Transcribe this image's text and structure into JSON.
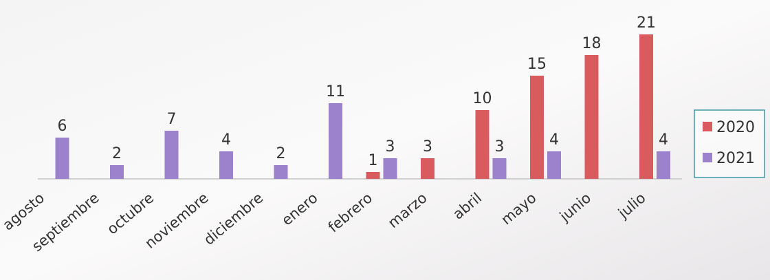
{
  "chart_data": {
    "type": "bar",
    "categories": [
      "agosto",
      "septiembre",
      "octubre",
      "noviembre",
      "diciembre",
      "enero",
      "febrero",
      "marzo",
      "abril",
      "mayo",
      "junio",
      "julio"
    ],
    "series": [
      {
        "name": "2020",
        "color": "#d95b5e",
        "values": [
          null,
          null,
          null,
          null,
          null,
          null,
          1,
          3,
          10,
          15,
          18,
          21
        ]
      },
      {
        "name": "2021",
        "color": "#9c82cc",
        "values": [
          6,
          2,
          7,
          4,
          2,
          11,
          3,
          null,
          3,
          4,
          null,
          4
        ]
      }
    ],
    "legend": "right"
  }
}
